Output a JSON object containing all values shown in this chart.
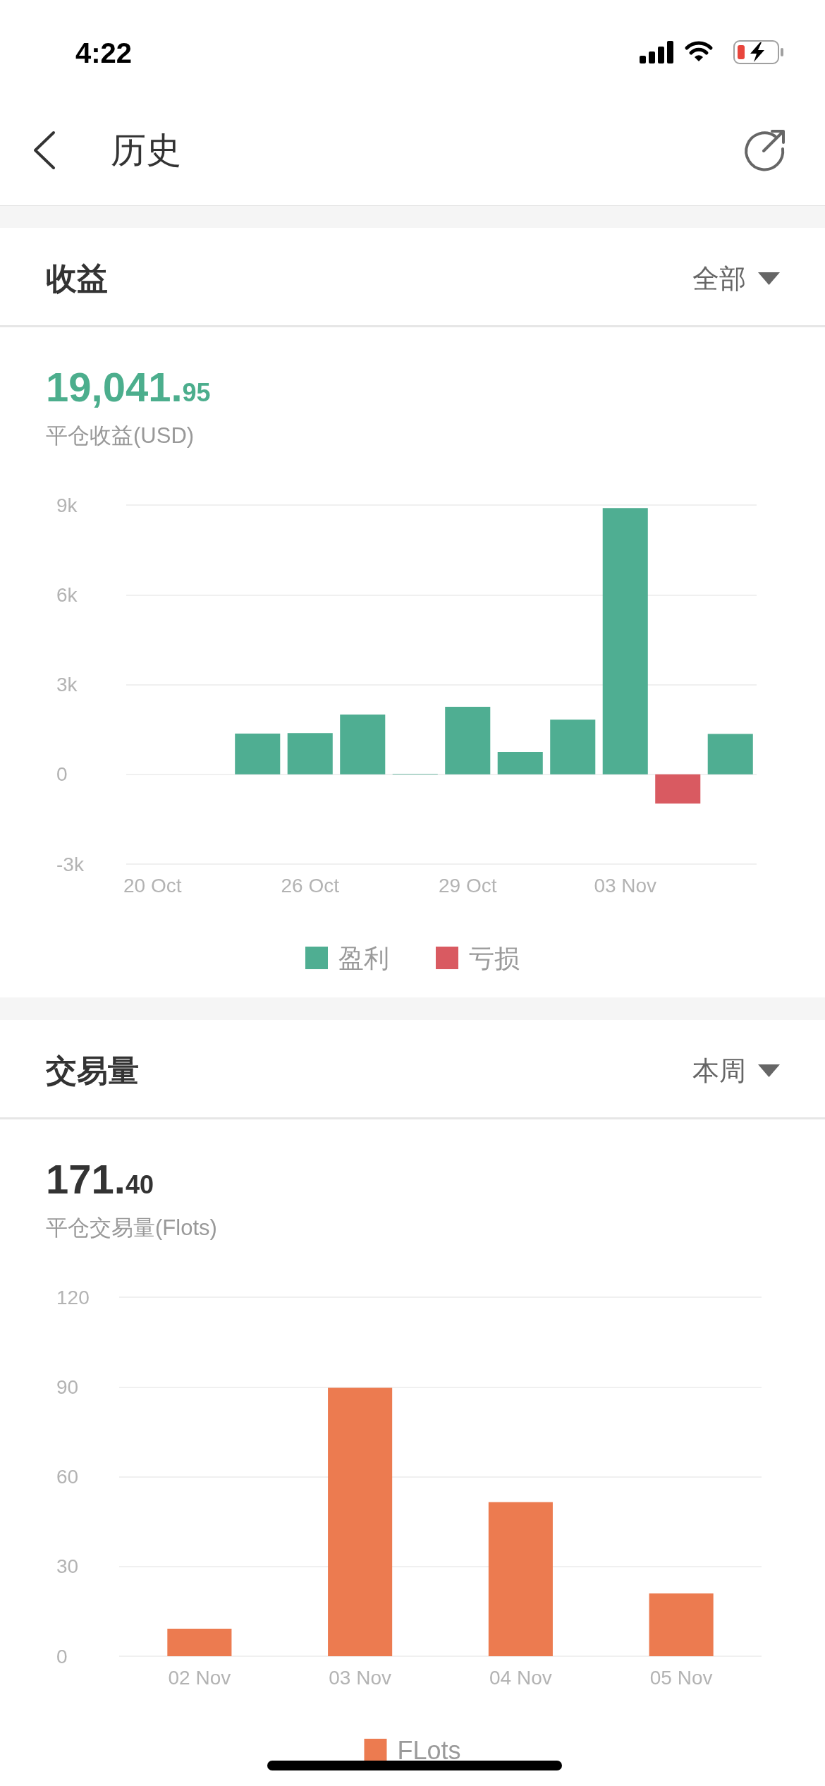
{
  "chart_data": [
    {
      "type": "bar",
      "title": "收益",
      "subtitle": "平仓收益(USD)",
      "annotations": [
        "全部",
        "19,041.95",
        "4:22",
        "历史"
      ],
      "categories": [
        "20 Oct",
        null,
        null,
        "26 Oct",
        null,
        null,
        "29 Oct",
        null,
        null,
        "03 Nov",
        null,
        null
      ],
      "series": [
        {
          "name": "盈利",
          "color": "#4fae92",
          "values": [
            null,
            null,
            1360,
            1380,
            2000,
            20,
            2260,
            750,
            1830,
            8900,
            null,
            1350
          ]
        },
        {
          "name": "亏损",
          "color": "#d95a61",
          "values": [
            null,
            null,
            null,
            null,
            null,
            null,
            null,
            null,
            null,
            null,
            -980,
            null
          ]
        }
      ],
      "stacked": true,
      "ylim": [
        -3000,
        9000
      ],
      "yticks": [
        {
          "value": -3000,
          "label": "-3k"
        },
        0,
        {
          "value": 3000,
          "label": "3k"
        },
        {
          "value": 6000,
          "label": "6k"
        },
        {
          "value": 9000,
          "label": "9k"
        }
      ],
      "grid": "y",
      "legend": "bottom"
    },
    {
      "type": "bar",
      "title": "交易量",
      "subtitle": "平仓交易量(Flots)",
      "annotations": [
        "本周",
        "171.40"
      ],
      "categories": [
        "02 Nov",
        "03 Nov",
        "04 Nov",
        "05 Nov"
      ],
      "series": [
        {
          "name": "FLots",
          "color": "#ec7b50",
          "values": [
            9.2,
            89.7,
            51.5,
            21.0
          ]
        }
      ],
      "ylim": [
        0,
        120
      ],
      "yticks": [
        0,
        30,
        60,
        90,
        120
      ],
      "grid": "y",
      "legend": "bottom"
    }
  ]
}
